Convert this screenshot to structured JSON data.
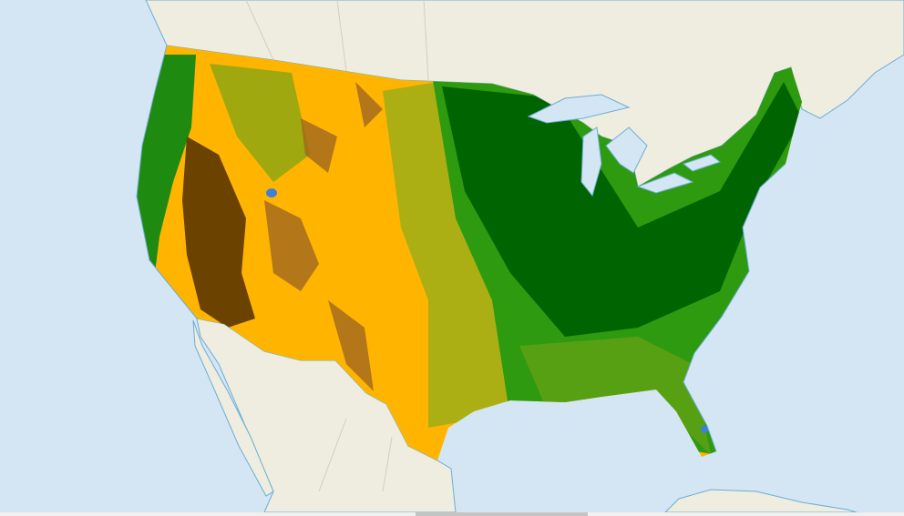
{
  "map": {
    "colors": {
      "water": "#d4e6f4",
      "land": "#efece0",
      "coastline": "#6aafd3",
      "border": "#d0cfc8",
      "shrub": "#ffb400",
      "barren": "#6b4200",
      "brown_shrub": "#a0661e",
      "grass": "#8fae1b",
      "forest_light": "#2e9a10",
      "forest_dark": "#006400",
      "lake": "#3f7fd6"
    }
  },
  "scrollbar": {
    "position": 0.46,
    "visible_fraction": 0.19
  }
}
